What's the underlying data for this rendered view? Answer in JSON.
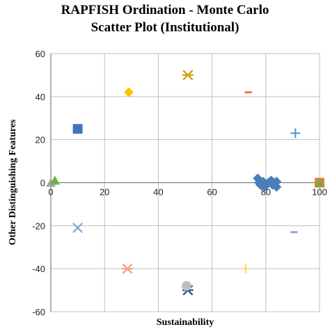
{
  "chart_data": {
    "type": "scatter",
    "title_line1": "RAPFISH Ordination - Monte Carlo",
    "title_line2": "Scatter Plot (Institutional)",
    "xlabel": "Sustainability",
    "ylabel": "Other Distinguishing Features",
    "xlim": [
      0,
      100
    ],
    "ylim": [
      -60,
      60
    ],
    "xticks": [
      0,
      20,
      40,
      60,
      80,
      100
    ],
    "yticks": [
      -60,
      -40,
      -20,
      0,
      20,
      40,
      60
    ],
    "grid": true,
    "legend": "none",
    "points": [
      {
        "x": 0,
        "y": 0,
        "marker": "triangle",
        "color": "#a6a6a6"
      },
      {
        "x": 1.5,
        "y": 1,
        "marker": "triangle",
        "color": "#70ad47"
      },
      {
        "x": 10,
        "y": 25,
        "marker": "square",
        "color": "#4472c4"
      },
      {
        "x": 10,
        "y": -21,
        "marker": "x",
        "color": "#8faadc"
      },
      {
        "x": 29,
        "y": 42,
        "marker": "diamond",
        "color": "#ffc000"
      },
      {
        "x": 28.5,
        "y": -40,
        "marker": "star",
        "color": "#f4a582"
      },
      {
        "x": 51,
        "y": 50,
        "marker": "star",
        "color": "#d4a017"
      },
      {
        "x": 51,
        "y": -50,
        "marker": "star",
        "color": "#2f5597"
      },
      {
        "x": 50.5,
        "y": -48,
        "marker": "circle",
        "color": "#bfbfbf"
      },
      {
        "x": 73.5,
        "y": 42,
        "marker": "dash",
        "color": "#ed7d31"
      },
      {
        "x": 72.5,
        "y": -40,
        "marker": "plus",
        "color": "#ffd966"
      },
      {
        "x": 91,
        "y": 23,
        "marker": "plus",
        "color": "#5b9bd5"
      },
      {
        "x": 90.5,
        "y": -23,
        "marker": "dash",
        "color": "#8faadc"
      },
      {
        "x": 77,
        "y": 2,
        "marker": "diamond",
        "color": "#4a7ebb"
      },
      {
        "x": 77.5,
        "y": 0,
        "marker": "diamond",
        "color": "#4a7ebb"
      },
      {
        "x": 78,
        "y": -1,
        "marker": "diamond",
        "color": "#4a7ebb"
      },
      {
        "x": 79,
        "y": 0.5,
        "marker": "diamond",
        "color": "#4a7ebb"
      },
      {
        "x": 79.5,
        "y": -2,
        "marker": "diamond",
        "color": "#4a7ebb"
      },
      {
        "x": 80,
        "y": -1,
        "marker": "diamond",
        "color": "#4a7ebb"
      },
      {
        "x": 81,
        "y": 0,
        "marker": "diamond",
        "color": "#4a7ebb"
      },
      {
        "x": 82,
        "y": 1,
        "marker": "diamond",
        "color": "#4a7ebb"
      },
      {
        "x": 82.5,
        "y": -1,
        "marker": "diamond",
        "color": "#4a7ebb"
      },
      {
        "x": 83,
        "y": 0,
        "marker": "diamond",
        "color": "#4a7ebb"
      },
      {
        "x": 84,
        "y": 0.5,
        "marker": "diamond",
        "color": "#4a7ebb"
      },
      {
        "x": 84,
        "y": -2,
        "marker": "diamond",
        "color": "#4a7ebb"
      },
      {
        "x": 100,
        "y": 0,
        "marker": "square",
        "color": "#ed7d31"
      },
      {
        "x": 100,
        "y": 0,
        "marker": "triangle",
        "color": "#70ad47"
      }
    ]
  }
}
